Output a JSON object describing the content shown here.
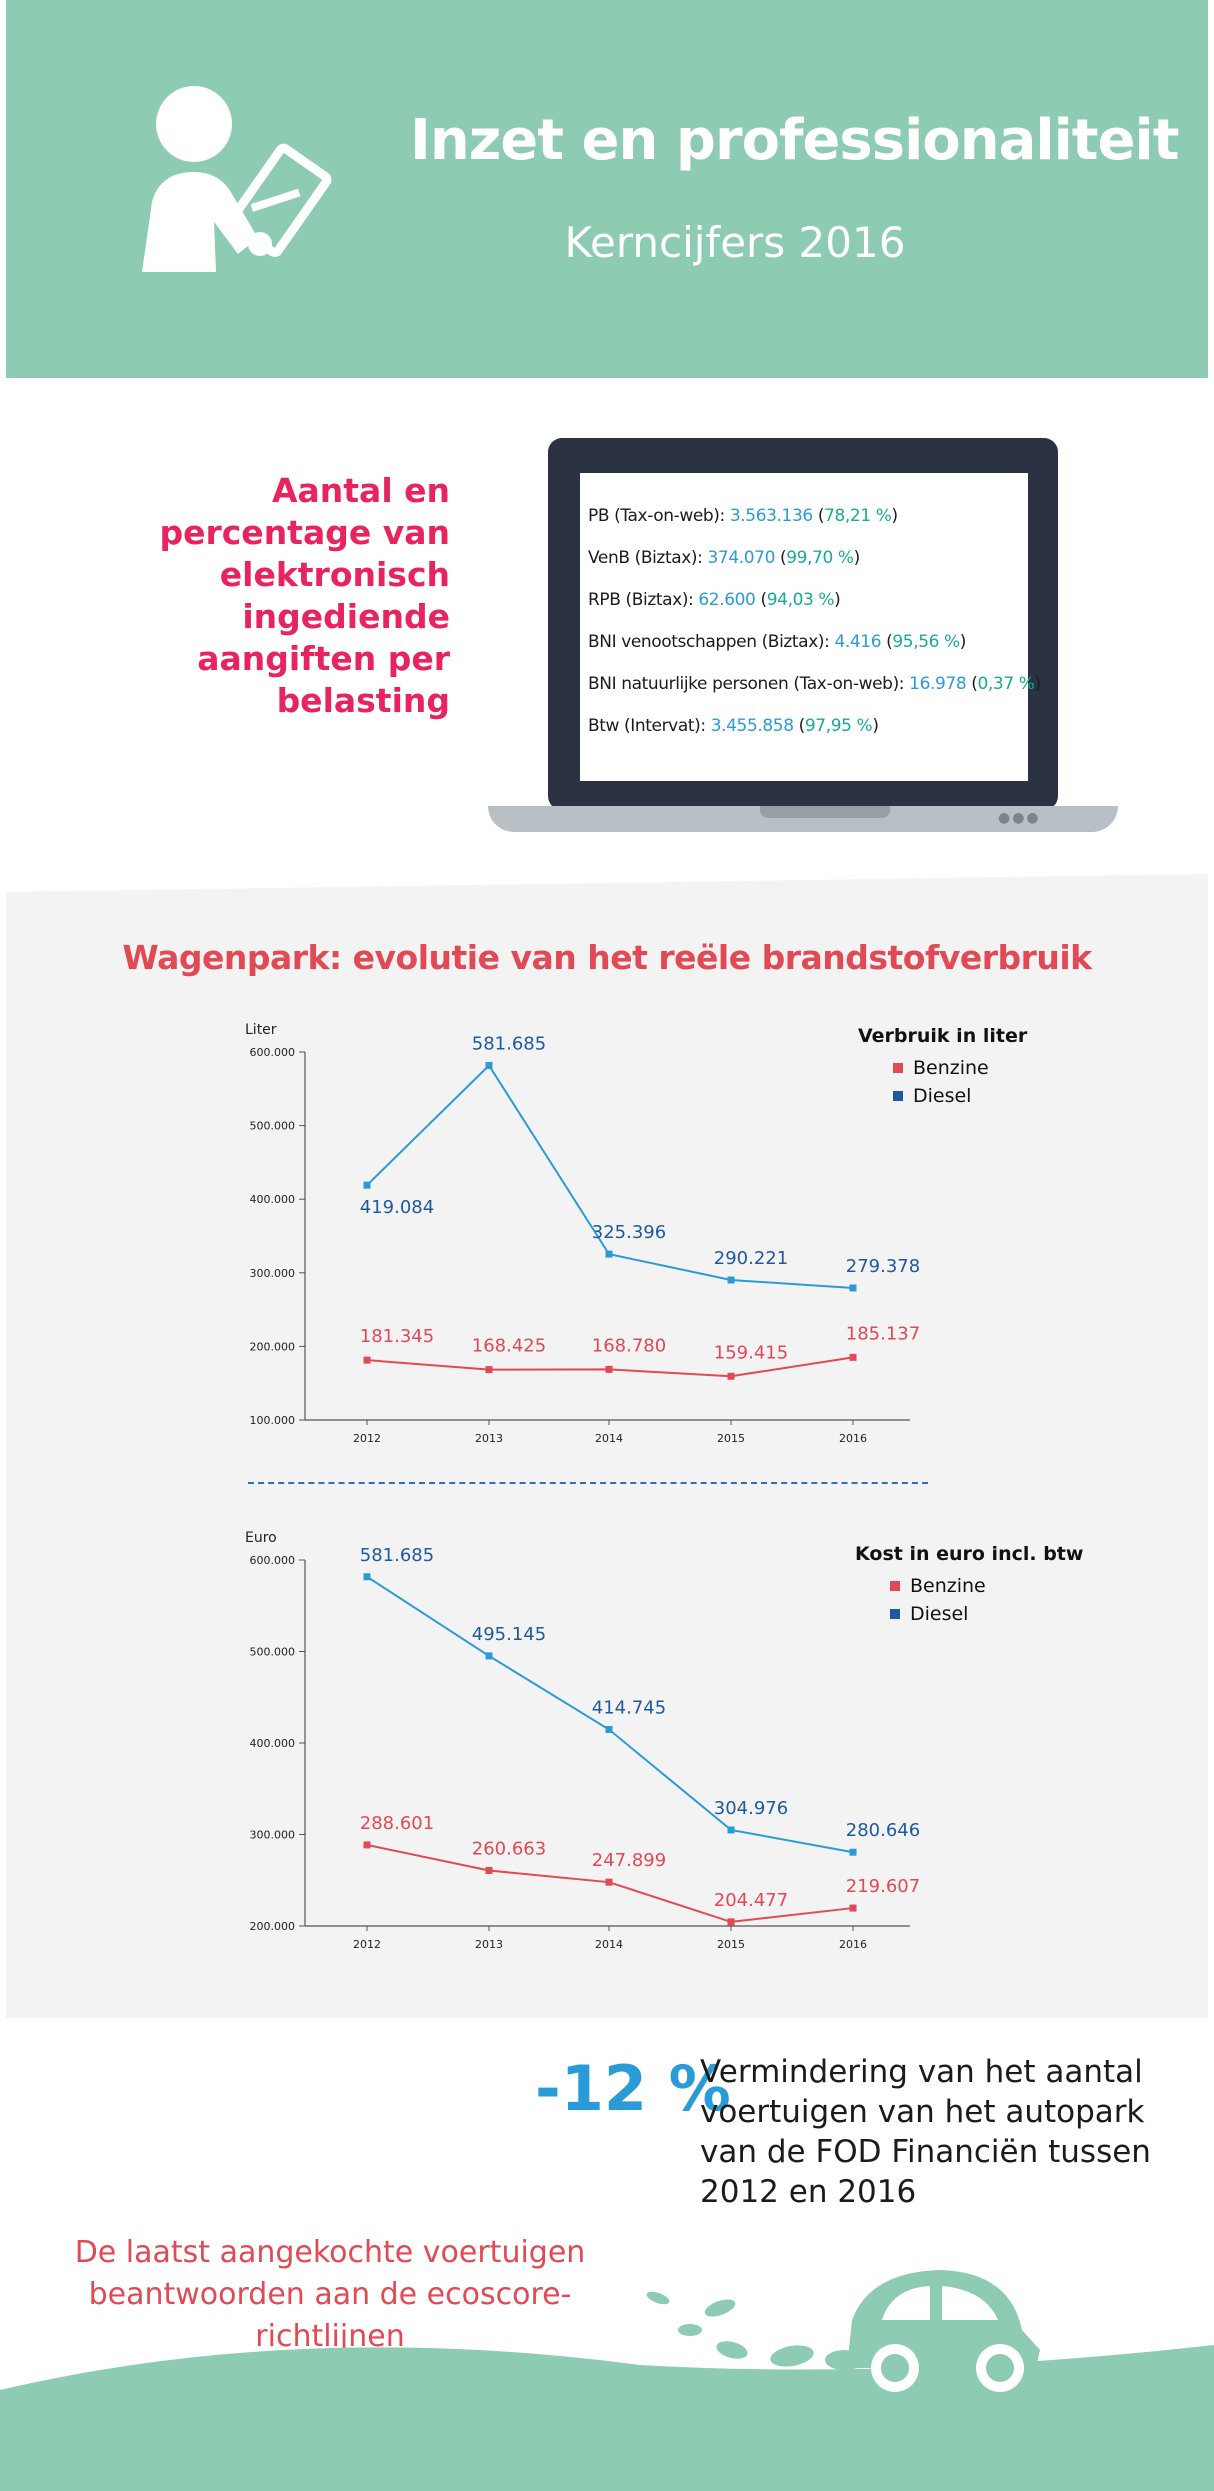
{
  "header": {
    "title": "Inzet en professionaliteit",
    "subtitle": "Kerncijfers 2016",
    "icon": "person-writing-icon",
    "bg_color": "#8ecbb3"
  },
  "aangiften": {
    "heading": "Aantal en percentage van elektronisch ingediende aangiften per belasting",
    "items": [
      {
        "label": "PB (Tax-on-web):",
        "value": "3.563.136",
        "pct": "78,21 %"
      },
      {
        "label": "VenB (Biztax):",
        "value": "374.070",
        "pct": "99,70 %"
      },
      {
        "label": "RPB (Biztax):",
        "value": "62.600",
        "pct": "94,03 %"
      },
      {
        "label": "BNI venootschappen (Biztax):",
        "value": "4.416",
        "pct": "95,56 %"
      },
      {
        "label": "BNI natuurlijke personen (Tax-on-web):",
        "value": "16.978",
        "pct": "0,37 %"
      },
      {
        "label": "Btw (Intervat):",
        "value": "3.455.858",
        "pct": "97,95 %"
      }
    ]
  },
  "chart_section": {
    "title": "Wagenpark: evolutie van het reële brandstofverbruik"
  },
  "chart_data": [
    {
      "type": "line",
      "ylabel": "Liter",
      "legend_title": "Verbruik in liter",
      "legend_position": "top-right",
      "x": [
        "2012",
        "2013",
        "2014",
        "2015",
        "2016"
      ],
      "yticks": [
        "600.000",
        "500.000",
        "400.000",
        "300.000",
        "200.000",
        "100.000"
      ],
      "ylim": [
        100000,
        600000
      ],
      "series": [
        {
          "name": "Benzine",
          "color": "#e14a55",
          "values": [
            181345,
            168425,
            168780,
            159415,
            185137
          ],
          "labels": [
            "181.345",
            "168.425",
            "168.780",
            "159.415",
            "185.137"
          ]
        },
        {
          "name": "Diesel",
          "color": "#2b9bd8",
          "values": [
            419084,
            581685,
            325396,
            290221,
            279378
          ],
          "labels": [
            "419.084",
            "581.685",
            "325.396",
            "290.221",
            "279.378"
          ]
        }
      ]
    },
    {
      "type": "line",
      "ylabel": "Euro",
      "legend_title": "Kost in euro incl. btw",
      "legend_position": "top-right",
      "x": [
        "2012",
        "2013",
        "2014",
        "2015",
        "2016"
      ],
      "yticks": [
        "600.000",
        "500.000",
        "400.000",
        "300.000",
        "200.000"
      ],
      "ylim": [
        200000,
        600000
      ],
      "series": [
        {
          "name": "Benzine",
          "color": "#e14a55",
          "values": [
            288601,
            260663,
            247899,
            204477,
            219607
          ],
          "labels": [
            "288.601",
            "260.663",
            "247.899",
            "204.477",
            "219.607"
          ]
        },
        {
          "name": "Diesel",
          "color": "#2b9bd8",
          "values": [
            581685,
            495145,
            414745,
            304976,
            280646
          ],
          "labels": [
            "581.685",
            "495.145",
            "414.745",
            "304.976",
            "280.646"
          ]
        }
      ]
    }
  ],
  "reduction": {
    "pct": "-12 %",
    "text": "Vermindering van het aantal voertuigen van het autopark van de FOD Financiën tussen 2012 en 2016"
  },
  "eco": {
    "text": "De laatst aangekochte voertuigen beantwoorden aan de ecoscore-richtlijnen",
    "icon": "car-icon"
  }
}
